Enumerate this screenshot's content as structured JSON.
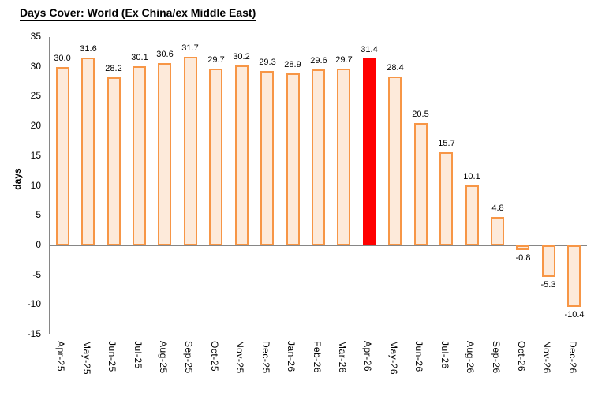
{
  "header": {
    "title": "Days Cover: World (Ex China/ex Middle East)"
  },
  "chart_data": {
    "type": "bar",
    "title": "Days Cover: World (Ex China/ex Middle East)",
    "xlabel": "",
    "ylabel": "days",
    "ylim": [
      -15,
      35
    ],
    "ytick_step": 5,
    "yticks": [
      35,
      30,
      25,
      20,
      15,
      10,
      5,
      0,
      -5,
      -10,
      -15
    ],
    "grid": false,
    "legend": "none",
    "categories": [
      "Apr-25",
      "May-25",
      "Jun-25",
      "Jul-25",
      "Aug-25",
      "Sep-25",
      "Oct-25",
      "Nov-25",
      "Dec-25",
      "Jan-26",
      "Feb-26",
      "Mar-26",
      "Apr-26",
      "May-26",
      "Jun-26",
      "Jul-26",
      "Aug-26",
      "Sep-26",
      "Oct-26",
      "Nov-26",
      "Dec-26"
    ],
    "values": [
      30.0,
      31.6,
      28.2,
      30.1,
      30.6,
      31.7,
      29.7,
      30.2,
      29.3,
      28.9,
      29.6,
      29.7,
      31.4,
      28.4,
      20.5,
      15.7,
      10.1,
      4.8,
      -0.8,
      -5.3,
      -10.4
    ],
    "value_labels": [
      "30.0",
      "31.6",
      "28.2",
      "30.1",
      "30.6",
      "31.7",
      "29.7",
      "30.2",
      "29.3",
      "28.9",
      "29.6",
      "29.7",
      "31.4",
      "28.4",
      "20.5",
      "15.7",
      "10.1",
      "4.8",
      "-0.8",
      "-5.3",
      "-10.4"
    ],
    "highlight": {
      "category": "Apr-26",
      "index": 12,
      "color": "#FF0000"
    },
    "colors": {
      "bar_fill": "#FDEADA",
      "bar_border": "#F79646",
      "highlight_fill": "#FF0000",
      "axis_line": "#868686",
      "label_text": "#000000"
    }
  }
}
